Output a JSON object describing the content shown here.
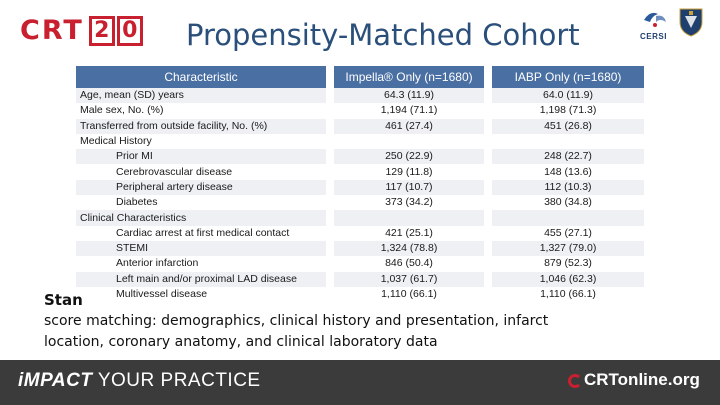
{
  "header": {
    "logo_text": "CRT",
    "logo_digits": [
      "2",
      "0"
    ],
    "title": "Propensity-Matched Cohort",
    "partner_logo_text": "CERSI"
  },
  "table": {
    "columns": [
      "Characteristic",
      "Impella® Only (n=1680)",
      "IABP Only (n=1680)"
    ],
    "rows": [
      {
        "label": "Age, mean (SD) years",
        "impella": "64.3 (11.9)",
        "iabp": "64.0 (11.9)",
        "sub": false
      },
      {
        "label": "Male sex, No. (%)",
        "impella": "1,194 (71.1)",
        "iabp": "1,198 (71.3)",
        "sub": false
      },
      {
        "label": "Transferred from outside facility, No. (%)",
        "impella": "461 (27.4)",
        "iabp": "451 (26.8)",
        "sub": false
      },
      {
        "label": "Medical History",
        "impella": "",
        "iabp": "",
        "sub": false
      },
      {
        "label": "Prior MI",
        "impella": "250 (22.9)",
        "iabp": "248 (22.7)",
        "sub": true
      },
      {
        "label": "Cerebrovascular disease",
        "impella": "129 (11.8)",
        "iabp": "148 (13.6)",
        "sub": true
      },
      {
        "label": "Peripheral artery disease",
        "impella": "117 (10.7)",
        "iabp": "112 (10.3)",
        "sub": true
      },
      {
        "label": "Diabetes",
        "impella": "373 (34.2)",
        "iabp": "380 (34.8)",
        "sub": true
      },
      {
        "label": "Clinical Characteristics",
        "impella": "",
        "iabp": "",
        "sub": false
      },
      {
        "label": "Cardiac arrest at first medical contact",
        "impella": "421 (25.1)",
        "iabp": "455 (27.1)",
        "sub": true
      },
      {
        "label": "STEMI",
        "impella": "1,324 (78.8)",
        "iabp": "1,327 (79.0)",
        "sub": true
      },
      {
        "label": "Anterior infarction",
        "impella": "846 (50.4)",
        "iabp": "879 (52.3)",
        "sub": true
      },
      {
        "label": "Left main and/or proximal LAD disease",
        "impella": "1,037 (61.7)",
        "iabp": "1,046 (62.3)",
        "sub": true
      },
      {
        "label": "Multivessel disease",
        "impella": "1,110 (66.1)",
        "iabp": "1,110 (66.1)",
        "sub": true
      }
    ]
  },
  "body": {
    "lead": "Stan",
    "line2": "score matching:  demographics, clinical history and presentation, infarct",
    "line3": "location, coronary anatomy, and clinical laboratory data"
  },
  "footer": {
    "tag_i": "i",
    "tag_mpact": "MPACT",
    "tag_rest": " YOUR PRACTICE",
    "brand": "CRTonline.org"
  },
  "colors": {
    "brand_red": "#c8202f",
    "title_blue": "#2a4f7a",
    "table_header": "#4a6fa3",
    "footer_bg": "#3b3b3b"
  }
}
